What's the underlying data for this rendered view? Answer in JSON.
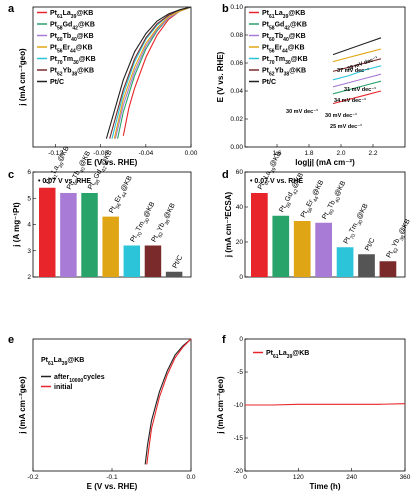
{
  "panels": [
    {
      "id": "a",
      "type": "line",
      "letter": "a",
      "xlabel": "E (V vs. RHE)",
      "ylabel": "j (mA cm⁻²geo)",
      "xlim": [
        -0.14,
        0.0
      ],
      "ylim": [
        -10,
        0
      ],
      "xticks": [
        "-0.12",
        "-0.08",
        "-0.04",
        "0.00"
      ],
      "xtick_values": [
        -0.12,
        -0.08,
        -0.04,
        0.0
      ],
      "yticks": [],
      "legend": [
        "Pt61La39@KB",
        "Pt58Gd42@KB",
        "Pt60Tb40@KB",
        "Pt56Er44@KB",
        "Pt70Tm30@KB",
        "Pt62Yb38@KB",
        "Pt/C"
      ],
      "series": [
        {
          "name": "Pt61La39@KB",
          "color": "#e8252a",
          "x": [
            0.0,
            -0.01,
            -0.02,
            -0.03,
            -0.04,
            -0.05,
            -0.055,
            -0.06
          ],
          "y": [
            0,
            -0.3,
            -0.9,
            -2.0,
            -3.6,
            -5.8,
            -7.2,
            -9.2
          ]
        },
        {
          "name": "Pt58Gd42@KB",
          "color": "#28a46a",
          "x": [
            0.0,
            -0.01,
            -0.02,
            -0.03,
            -0.04,
            -0.05,
            -0.06,
            -0.065
          ],
          "y": [
            0,
            -0.3,
            -0.8,
            -1.7,
            -3.0,
            -4.9,
            -7.5,
            -9.4
          ]
        },
        {
          "name": "Pt60Tb40@KB",
          "color": "#a77bd6",
          "x": [
            0.0,
            -0.01,
            -0.02,
            -0.03,
            -0.04,
            -0.05,
            -0.06,
            -0.067
          ],
          "y": [
            0,
            -0.3,
            -0.8,
            -1.6,
            -2.8,
            -4.6,
            -7.0,
            -9.4
          ]
        },
        {
          "name": "Pt56Er44@KB",
          "color": "#e0a514",
          "x": [
            0.0,
            -0.01,
            -0.02,
            -0.03,
            -0.04,
            -0.05,
            -0.06,
            -0.068
          ],
          "y": [
            0,
            -0.3,
            -0.7,
            -1.5,
            -2.6,
            -4.3,
            -6.6,
            -9.4
          ]
        },
        {
          "name": "Pt70Tm30@KB",
          "color": "#2cc4d8",
          "x": [
            0.0,
            -0.01,
            -0.02,
            -0.03,
            -0.04,
            -0.05,
            -0.06,
            -0.07
          ],
          "y": [
            0,
            -0.2,
            -0.6,
            -1.3,
            -2.3,
            -3.9,
            -6.2,
            -9.4
          ]
        },
        {
          "name": "Pt62Yb38@KB",
          "color": "#7a2a2a",
          "x": [
            0.0,
            -0.01,
            -0.02,
            -0.03,
            -0.04,
            -0.05,
            -0.06,
            -0.072
          ],
          "y": [
            0,
            -0.2,
            -0.6,
            -1.2,
            -2.2,
            -3.7,
            -5.9,
            -9.4
          ]
        },
        {
          "name": "Pt/C",
          "color": "#222222",
          "x": [
            0.0,
            -0.01,
            -0.02,
            -0.03,
            -0.04,
            -0.05,
            -0.06,
            -0.075
          ],
          "y": [
            0,
            -0.2,
            -0.5,
            -1.0,
            -1.9,
            -3.2,
            -5.2,
            -9.4
          ]
        }
      ]
    },
    {
      "id": "b",
      "type": "line",
      "letter": "b",
      "xlabel": "log|j| (mA cm⁻²)",
      "ylabel": "E (V vs. RHE)",
      "xlim": [
        1.4,
        2.4
      ],
      "ylim": [
        0.0,
        0.1
      ],
      "xticks": [
        "1.6",
        "1.8",
        "2.0",
        "2.2"
      ],
      "xtick_values": [
        1.6,
        1.8,
        2.0,
        2.2
      ],
      "yticks": [
        "0.00",
        "0.02",
        "0.04",
        "0.06",
        "0.08",
        "0.10"
      ],
      "ytick_values": [
        0.0,
        0.02,
        0.04,
        0.06,
        0.08,
        0.1
      ],
      "legend": [
        "Pt61La39@KB",
        "Pt58Gd42@KB",
        "Pt60Tb40@KB",
        "Pt56Er44@KB",
        "Pt70Tm30@KB",
        "Pt62Yb38@KB",
        "Pt/C"
      ],
      "annotations": [
        "37 mV dec⁻¹",
        "29 mV dec⁻¹",
        "31 mV dec⁻¹",
        "34 mV dec⁻¹",
        "30 mV dec⁻¹",
        "30 mV dec⁻¹",
        "25 mV dec⁻¹"
      ],
      "series": [
        {
          "name": "Pt61La39@KB",
          "color": "#e8252a",
          "x": [
            1.95,
            2.05,
            2.15,
            2.25
          ],
          "y": [
            0.031,
            0.034,
            0.037,
            0.04
          ]
        },
        {
          "name": "Pt58Gd42@KB",
          "color": "#28a46a",
          "x": [
            1.95,
            2.05,
            2.15,
            2.25
          ],
          "y": [
            0.038,
            0.041,
            0.044,
            0.047
          ]
        },
        {
          "name": "Pt60Tb40@KB",
          "color": "#a77bd6",
          "x": [
            1.95,
            2.05,
            2.15,
            2.25
          ],
          "y": [
            0.043,
            0.046,
            0.049,
            0.052
          ]
        },
        {
          "name": "Pt56Er44@KB",
          "color": "#e0a514",
          "x": [
            1.95,
            2.05,
            2.15,
            2.25
          ],
          "y": [
            0.061,
            0.064,
            0.067,
            0.07
          ]
        },
        {
          "name": "Pt70Tm30@KB",
          "color": "#2cc4d8",
          "x": [
            1.95,
            2.05,
            2.15,
            2.25
          ],
          "y": [
            0.048,
            0.051,
            0.055,
            0.058
          ]
        },
        {
          "name": "Pt62Yb38@KB",
          "color": "#7a2a2a",
          "x": [
            1.95,
            2.05,
            2.15,
            2.25
          ],
          "y": [
            0.054,
            0.057,
            0.06,
            0.063
          ]
        },
        {
          "name": "Pt/C",
          "color": "#222222",
          "x": [
            1.95,
            2.05,
            2.15,
            2.25
          ],
          "y": [
            0.066,
            0.07,
            0.074,
            0.078
          ]
        }
      ]
    },
    {
      "id": "c",
      "type": "bar",
      "letter": "c",
      "annotation": "0.07 V vs. RHE",
      "ylabel": "j (A mg⁻¹Pt)",
      "ylim": [
        2,
        6
      ],
      "yticks": [
        "2",
        "3",
        "4",
        "5",
        "6"
      ],
      "ytick_values": [
        2,
        3,
        4,
        5,
        6
      ],
      "categories": [
        "Pt61La39@KB",
        "Pt60Tb40@KB",
        "Pt58Gd42@KB",
        "Pt56Er44@KB",
        "Pt70Tm30@KB",
        "Pt62Yb38@KB",
        "Pt/C"
      ],
      "values": [
        5.4,
        5.2,
        5.2,
        4.3,
        3.2,
        3.2,
        2.2
      ],
      "colors": [
        "#e8252a",
        "#a77bd6",
        "#28a46a",
        "#e0a514",
        "#2cc4d8",
        "#7a2a2a",
        "#555555"
      ]
    },
    {
      "id": "d",
      "type": "bar",
      "letter": "d",
      "annotation": "0.07 V vs. RHE",
      "ylabel": "j (mA cm⁻²ECSA)",
      "ylim": [
        0,
        60
      ],
      "yticks": [
        "0",
        "20",
        "40",
        "60"
      ],
      "ytick_values": [
        0,
        20,
        40,
        60
      ],
      "categories": [
        "Pt61La39@KB",
        "Pt58Gd42@KB",
        "Pt56Er44@KB",
        "Pt60Tb40@KB",
        "Pt70Tm30@KB",
        "Pt/C",
        "Pt62Yb38@KB"
      ],
      "values": [
        48,
        35,
        32,
        31,
        17,
        13,
        9
      ],
      "colors": [
        "#e8252a",
        "#28a46a",
        "#e0a514",
        "#a77bd6",
        "#2cc4d8",
        "#555555",
        "#7a2a2a"
      ]
    },
    {
      "id": "e",
      "type": "line",
      "letter": "e",
      "title": "Pt61La39@KB",
      "xlabel": "E (V vs. RHE)",
      "ylabel": "j (mA cm⁻²geo)",
      "xlim": [
        -0.2,
        0.0
      ],
      "ylim": [
        -10,
        0
      ],
      "xticks": [
        "-0.2",
        "-0.1",
        "0.0"
      ],
      "xtick_values": [
        -0.2,
        -0.1,
        0.0
      ],
      "yticks": [],
      "legend": [
        "after 10000 cycles",
        "initial"
      ],
      "series": [
        {
          "name": "after 10000 cycles",
          "color": "#222222",
          "x": [
            0.0,
            -0.01,
            -0.02,
            -0.03,
            -0.04,
            -0.05,
            -0.055,
            -0.058
          ],
          "y": [
            0,
            -0.5,
            -1.2,
            -2.4,
            -4.0,
            -6.2,
            -8.0,
            -9.5
          ]
        },
        {
          "name": "initial",
          "color": "#e8252a",
          "x": [
            0.0,
            -0.01,
            -0.02,
            -0.03,
            -0.04,
            -0.05,
            -0.054,
            -0.056
          ],
          "y": [
            0,
            -0.6,
            -1.4,
            -2.7,
            -4.4,
            -6.8,
            -8.6,
            -9.5
          ]
        }
      ]
    },
    {
      "id": "f",
      "type": "line",
      "letter": "f",
      "xlabel": "Time (h)",
      "ylabel": "j (mA cm⁻²geo)",
      "xlim": [
        0,
        360
      ],
      "ylim": [
        -20,
        0
      ],
      "xticks": [
        "0",
        "120",
        "240",
        "360"
      ],
      "xtick_values": [
        0,
        120,
        240,
        360
      ],
      "yticks": [
        "-20",
        "-15",
        "-10",
        "-5",
        "0"
      ],
      "ytick_values": [
        -20,
        -15,
        -10,
        -5,
        0
      ],
      "legend": [
        "Pt61La39@KB"
      ],
      "series": [
        {
          "name": "Pt61La39@KB",
          "color": "#e8252a",
          "x": [
            0,
            60,
            120,
            180,
            240,
            300,
            360
          ],
          "y": [
            -10,
            -10,
            -9.9,
            -9.9,
            -9.9,
            -9.9,
            -9.8
          ]
        }
      ]
    }
  ]
}
